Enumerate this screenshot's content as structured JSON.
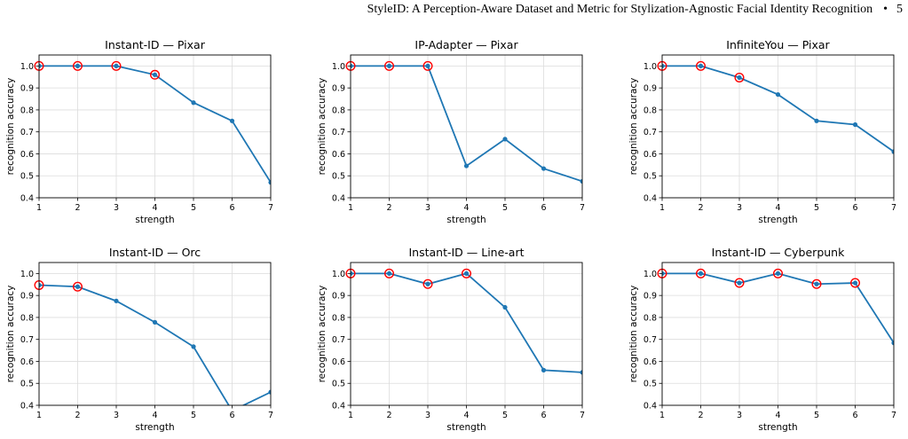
{
  "header": {
    "title": "StyleID: A Perception-Aware Dataset and Metric for Stylization-Agnostic Facial Identity Recognition",
    "bullet": "•",
    "page_number": "5"
  },
  "colors": {
    "line": "#1f77b4",
    "marker_highlight": "#ff0000"
  },
  "chart_data": [
    {
      "type": "line",
      "title": "Instant-ID — Pixar",
      "xlabel": "strength",
      "ylabel": "recognition accuracy",
      "x": [
        1,
        2,
        3,
        4,
        5,
        6,
        7
      ],
      "y": [
        1.0,
        1.0,
        1.0,
        0.96,
        0.833,
        0.75,
        0.47
      ],
      "highlighted_x": [
        1,
        2,
        3,
        4
      ],
      "xlim": [
        1,
        7
      ],
      "ylim": [
        0.4,
        1.05
      ],
      "xticks": [
        1,
        2,
        3,
        4,
        5,
        6,
        7
      ],
      "yticks": [
        0.4,
        0.5,
        0.6,
        0.7,
        0.8,
        0.9,
        1.0
      ],
      "grid": true
    },
    {
      "type": "line",
      "title": "IP-Adapter — Pixar",
      "xlabel": "strength",
      "ylabel": "recognition accuracy",
      "x": [
        1,
        2,
        3,
        4,
        5,
        6,
        7
      ],
      "y": [
        1.0,
        1.0,
        1.0,
        0.545,
        0.667,
        0.533,
        0.475
      ],
      "highlighted_x": [
        1,
        2,
        3
      ],
      "xlim": [
        1,
        7
      ],
      "ylim": [
        0.4,
        1.05
      ],
      "xticks": [
        1,
        2,
        3,
        4,
        5,
        6,
        7
      ],
      "yticks": [
        0.4,
        0.5,
        0.6,
        0.7,
        0.8,
        0.9,
        1.0
      ],
      "grid": true
    },
    {
      "type": "line",
      "title": "InfiniteYou — Pixar",
      "xlabel": "strength",
      "ylabel": "recognition accuracy",
      "x": [
        1,
        2,
        3,
        4,
        5,
        6,
        7
      ],
      "y": [
        1.0,
        1.0,
        0.947,
        0.87,
        0.75,
        0.733,
        0.61
      ],
      "highlighted_x": [
        1,
        2,
        3
      ],
      "xlim": [
        1,
        7
      ],
      "ylim": [
        0.4,
        1.05
      ],
      "xticks": [
        1,
        2,
        3,
        4,
        5,
        6,
        7
      ],
      "yticks": [
        0.4,
        0.5,
        0.6,
        0.7,
        0.8,
        0.9,
        1.0
      ],
      "grid": true
    },
    {
      "type": "line",
      "title": "Instant-ID — Orc",
      "xlabel": "strength",
      "ylabel": "recognition accuracy",
      "x": [
        1,
        2,
        3,
        4,
        5,
        6,
        7
      ],
      "y": [
        0.947,
        0.94,
        0.875,
        0.778,
        0.667,
        0.375,
        0.46
      ],
      "highlighted_x": [
        1,
        2
      ],
      "xlim": [
        1,
        7
      ],
      "ylim": [
        0.4,
        1.05
      ],
      "xticks": [
        1,
        2,
        3,
        4,
        5,
        6,
        7
      ],
      "yticks": [
        0.4,
        0.5,
        0.6,
        0.7,
        0.8,
        0.9,
        1.0
      ],
      "grid": true
    },
    {
      "type": "line",
      "title": "Instant-ID — Line-art",
      "xlabel": "strength",
      "ylabel": "recognition accuracy",
      "x": [
        1,
        2,
        3,
        4,
        5,
        6,
        7
      ],
      "y": [
        1.0,
        1.0,
        0.952,
        1.0,
        0.846,
        0.56,
        0.55
      ],
      "highlighted_x": [
        1,
        2,
        3,
        4
      ],
      "xlim": [
        1,
        7
      ],
      "ylim": [
        0.4,
        1.05
      ],
      "xticks": [
        1,
        2,
        3,
        4,
        5,
        6,
        7
      ],
      "yticks": [
        0.4,
        0.5,
        0.6,
        0.7,
        0.8,
        0.9,
        1.0
      ],
      "grid": true
    },
    {
      "type": "line",
      "title": "Instant-ID — Cyberpunk",
      "xlabel": "strength",
      "ylabel": "recognition accuracy",
      "x": [
        1,
        2,
        3,
        4,
        5,
        6,
        7
      ],
      "y": [
        1.0,
        1.0,
        0.957,
        1.0,
        0.952,
        0.957,
        0.684
      ],
      "highlighted_x": [
        1,
        2,
        3,
        4,
        5,
        6
      ],
      "xlim": [
        1,
        7
      ],
      "ylim": [
        0.4,
        1.05
      ],
      "xticks": [
        1,
        2,
        3,
        4,
        5,
        6,
        7
      ],
      "yticks": [
        0.4,
        0.5,
        0.6,
        0.7,
        0.8,
        0.9,
        1.0
      ],
      "grid": true
    }
  ]
}
